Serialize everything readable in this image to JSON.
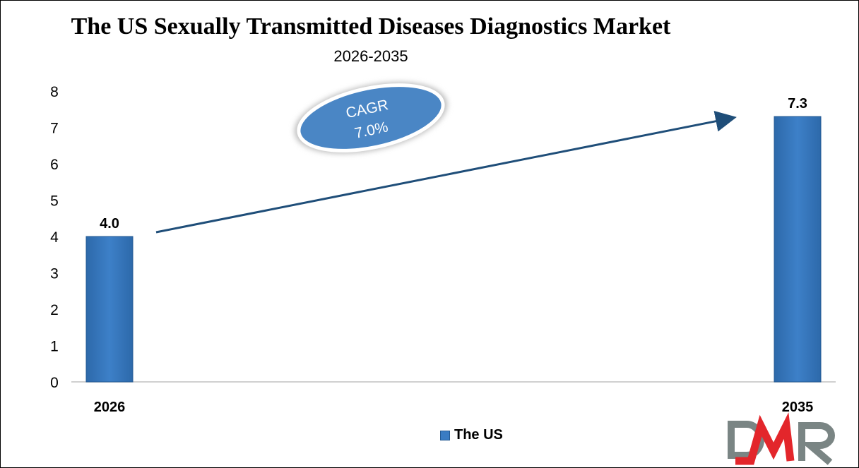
{
  "chart_data": {
    "type": "bar",
    "title": "The US Sexually Transmitted Diseases Diagnostics Market",
    "subtitle": "2026-2035",
    "categories": [
      "2026",
      "2035"
    ],
    "series": [
      {
        "name": "The US",
        "values": [
          4.0,
          7.3
        ]
      }
    ],
    "data_labels": [
      "4.0",
      "7.3"
    ],
    "ylim": [
      0,
      8
    ],
    "yticks": [
      "0",
      "1",
      "2",
      "3",
      "4",
      "5",
      "6",
      "7",
      "8"
    ],
    "grid": false,
    "legend": "bottom",
    "annotation": {
      "line1": "CAGR",
      "line2": "7.0%"
    },
    "colors": {
      "bar": "#3a7cc3",
      "arrow": "#1f4e79",
      "ellipse": "#4a86c5"
    }
  },
  "logo": {
    "text": "DMR",
    "colors": {
      "gray": "#7a8584",
      "red": "#e3262b"
    }
  }
}
